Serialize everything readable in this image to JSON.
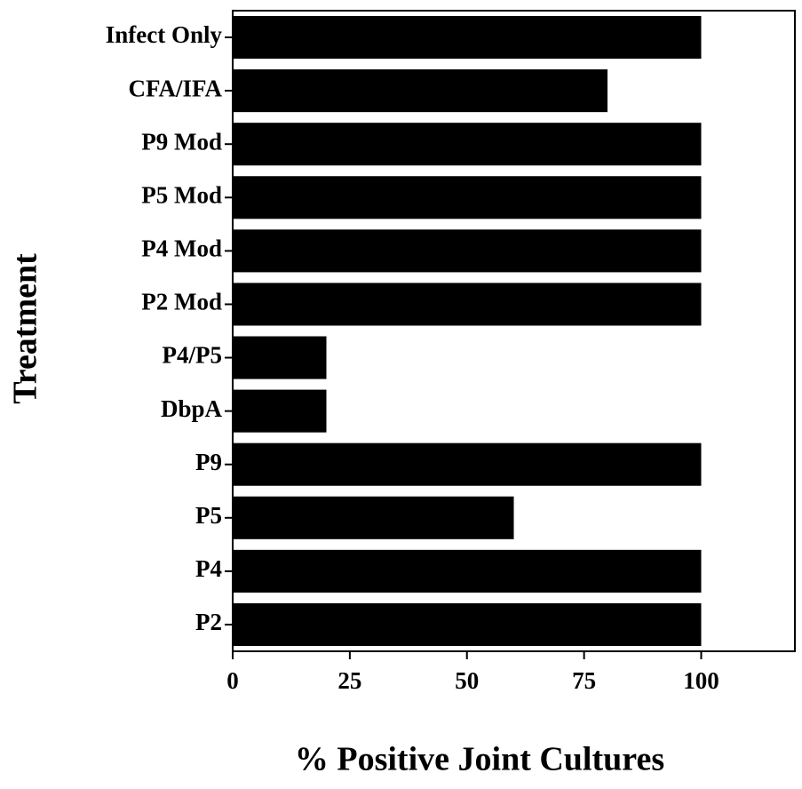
{
  "chart_data": {
    "type": "barh",
    "xlabel": "% Positive Joint Cultures",
    "ylabel": "Treatment",
    "categories": [
      "Infect Only",
      "CFA/IFA",
      "P9 Mod",
      "P5 Mod",
      "P4 Mod",
      "P2 Mod",
      "P4/P5",
      "DbpA",
      "P9",
      "P5",
      "P4",
      "P2"
    ],
    "values": [
      100,
      80,
      100,
      100,
      100,
      100,
      20,
      20,
      100,
      60,
      100,
      100
    ],
    "color": "#000000",
    "xlim": [
      0,
      120
    ],
    "xticks": [
      0,
      25,
      50,
      75,
      100
    ],
    "grid": false
  }
}
